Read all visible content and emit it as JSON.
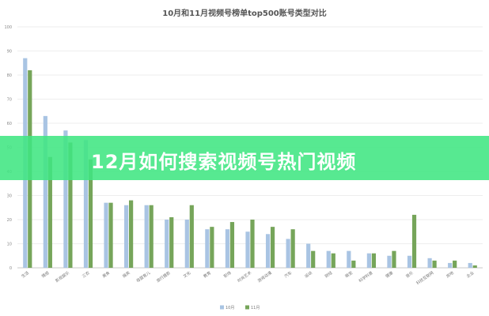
{
  "banner": {
    "text": "12月如何搜索视频号热门视频"
  },
  "chart_data": {
    "type": "bar",
    "title": "10月和11月视频号榜单top500账号类型对比",
    "xlabel": "",
    "ylabel": "",
    "ylim": [
      0,
      100
    ],
    "yticks": [
      0,
      10,
      20,
      30,
      40,
      50,
      60,
      70,
      80,
      90,
      100
    ],
    "grid": true,
    "legend_position": "bottom",
    "categories": [
      "生活",
      "情感",
      "影视娱乐",
      "三农",
      "美食",
      "搞笑",
      "母婴育儿",
      "旅行摄影",
      "文化",
      "教育",
      "职场",
      "时尚艺术",
      "游戏动漫",
      "汽车",
      "运动",
      "财经",
      "萌宠",
      "科学科普",
      "健康",
      "音乐",
      "科技互联网",
      "房地",
      "企业"
    ],
    "series": [
      {
        "name": "10月",
        "color": "#a9c4e3",
        "values": [
          87,
          63,
          57,
          53,
          27,
          26,
          26,
          20,
          20,
          16,
          16,
          15,
          14,
          12,
          10,
          7,
          7,
          6,
          5,
          5,
          4,
          2,
          2
        ]
      },
      {
        "name": "11月",
        "color": "#76a55a",
        "values": [
          82,
          46,
          52,
          45,
          27,
          28,
          26,
          21,
          26,
          17,
          19,
          20,
          17,
          16,
          7,
          6,
          3,
          6,
          7,
          22,
          3,
          3,
          1
        ]
      }
    ]
  }
}
